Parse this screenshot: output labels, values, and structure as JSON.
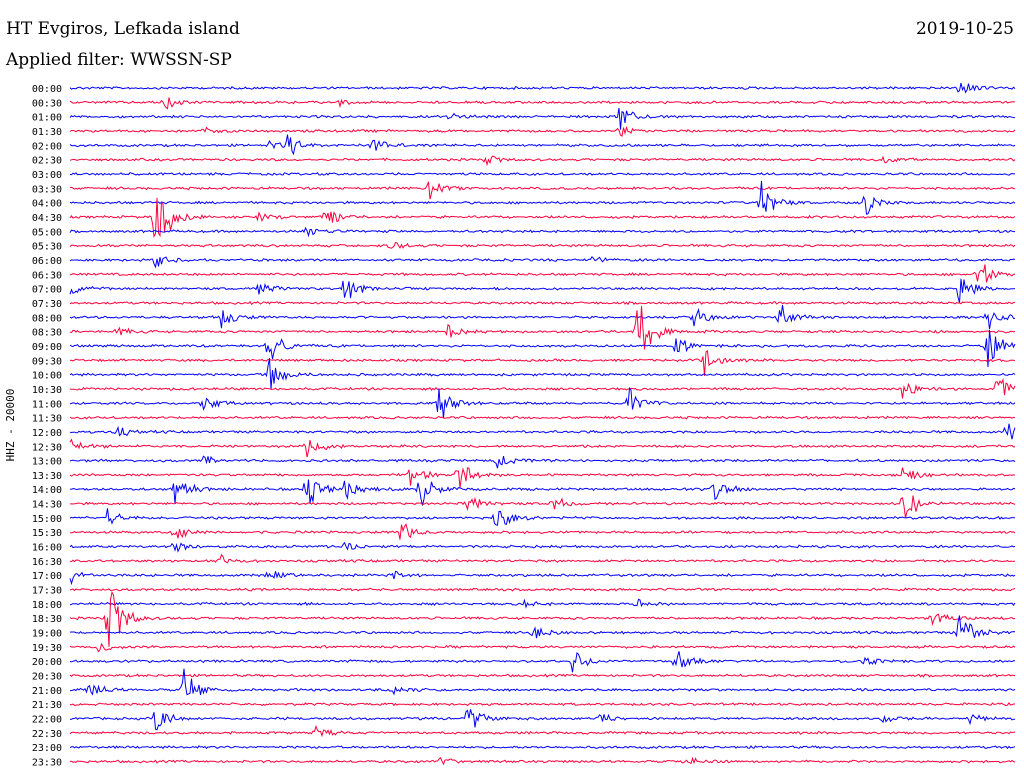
{
  "header": {
    "station": "HT Evgiros, Lefkada island",
    "date": "2019-10-25",
    "filter": "Applied filter: WWSSN-SP"
  },
  "chart_data": {
    "type": "line",
    "title": "HT Evgiros, Lefkada island",
    "ylabel": "HHZ - 20000",
    "grid": false,
    "colors": {
      "even": "#0000ff",
      "odd": "#ff003c"
    },
    "rows": [
      {
        "time": "00:00",
        "events": [
          [
            0.94,
            14
          ]
        ]
      },
      {
        "time": "00:30",
        "events": [
          [
            0.1,
            10
          ],
          [
            0.28,
            6
          ]
        ]
      },
      {
        "time": "01:00",
        "events": [
          [
            0.58,
            16
          ],
          [
            0.4,
            4
          ]
        ]
      },
      {
        "time": "01:30",
        "events": [
          [
            0.58,
            8
          ],
          [
            0.14,
            5
          ]
        ]
      },
      {
        "time": "02:00",
        "events": [
          [
            0.23,
            12
          ],
          [
            0.32,
            10
          ],
          [
            0.21,
            7
          ]
        ]
      },
      {
        "time": "02:30",
        "events": [
          [
            0.44,
            7
          ],
          [
            0.86,
            7
          ]
        ]
      },
      {
        "time": "03:00",
        "events": []
      },
      {
        "time": "03:30",
        "events": [
          [
            0.38,
            12
          ]
        ]
      },
      {
        "time": "04:00",
        "events": [
          [
            0.73,
            26
          ],
          [
            0.84,
            18
          ]
        ]
      },
      {
        "time": "04:30",
        "events": [
          [
            0.09,
            65
          ],
          [
            0.27,
            14
          ],
          [
            0.2,
            10
          ]
        ]
      },
      {
        "time": "05:00",
        "events": [
          [
            0.25,
            8
          ]
        ]
      },
      {
        "time": "05:30",
        "events": [
          [
            0.34,
            6
          ]
        ]
      },
      {
        "time": "06:00",
        "events": [
          [
            0.09,
            10
          ],
          [
            0.55,
            5
          ]
        ]
      },
      {
        "time": "06:30",
        "events": [
          [
            0.96,
            22
          ]
        ]
      },
      {
        "time": "07:00",
        "events": [
          [
            0.29,
            18
          ],
          [
            0.2,
            9
          ],
          [
            0.94,
            18
          ],
          [
            0.0,
            8
          ]
        ]
      },
      {
        "time": "07:30",
        "events": []
      },
      {
        "time": "08:00",
        "events": [
          [
            0.16,
            14
          ],
          [
            0.66,
            18
          ],
          [
            0.75,
            16
          ],
          [
            0.97,
            16
          ]
        ]
      },
      {
        "time": "08:30",
        "events": [
          [
            0.6,
            50
          ],
          [
            0.4,
            8
          ],
          [
            0.05,
            5
          ]
        ]
      },
      {
        "time": "09:00",
        "events": [
          [
            0.21,
            30
          ],
          [
            0.64,
            14
          ],
          [
            0.97,
            26
          ]
        ]
      },
      {
        "time": "09:30",
        "events": [
          [
            0.67,
            22
          ]
        ]
      },
      {
        "time": "10:00",
        "events": [
          [
            0.21,
            22
          ]
        ]
      },
      {
        "time": "10:30",
        "events": [
          [
            0.88,
            16
          ],
          [
            0.98,
            18
          ]
        ]
      },
      {
        "time": "11:00",
        "events": [
          [
            0.14,
            12
          ],
          [
            0.39,
            22
          ],
          [
            0.59,
            20
          ]
        ]
      },
      {
        "time": "11:30",
        "events": []
      },
      {
        "time": "12:00",
        "events": [
          [
            0.99,
            20
          ],
          [
            0.05,
            6
          ]
        ]
      },
      {
        "time": "12:30",
        "events": [
          [
            0.25,
            18
          ],
          [
            0.0,
            10
          ]
        ]
      },
      {
        "time": "13:00",
        "events": [
          [
            0.45,
            12
          ],
          [
            0.14,
            6
          ]
        ]
      },
      {
        "time": "13:30",
        "events": [
          [
            0.36,
            16
          ],
          [
            0.41,
            18
          ],
          [
            0.88,
            14
          ]
        ]
      },
      {
        "time": "14:00",
        "events": [
          [
            0.11,
            22
          ],
          [
            0.25,
            30
          ],
          [
            0.29,
            18
          ],
          [
            0.37,
            24
          ],
          [
            0.68,
            20
          ]
        ]
      },
      {
        "time": "14:30",
        "events": [
          [
            0.42,
            12
          ],
          [
            0.51,
            10
          ],
          [
            0.88,
            30
          ]
        ]
      },
      {
        "time": "15:00",
        "events": [
          [
            0.04,
            12
          ],
          [
            0.45,
            20
          ]
        ]
      },
      {
        "time": "15:30",
        "events": [
          [
            0.35,
            16
          ],
          [
            0.11,
            12
          ]
        ]
      },
      {
        "time": "16:00",
        "events": [
          [
            0.29,
            6
          ],
          [
            0.11,
            8
          ]
        ]
      },
      {
        "time": "16:30",
        "events": [
          [
            0.16,
            6
          ]
        ]
      },
      {
        "time": "17:00",
        "events": [
          [
            0.21,
            12
          ],
          [
            0.0,
            10
          ],
          [
            0.34,
            5
          ]
        ]
      },
      {
        "time": "17:30",
        "events": []
      },
      {
        "time": "18:00",
        "events": [
          [
            0.6,
            6
          ],
          [
            0.48,
            4
          ]
        ]
      },
      {
        "time": "18:30",
        "events": [
          [
            0.04,
            60
          ],
          [
            0.91,
            10
          ]
        ]
      },
      {
        "time": "19:00",
        "events": [
          [
            0.49,
            10
          ],
          [
            0.94,
            28
          ]
        ]
      },
      {
        "time": "19:30",
        "events": [
          [
            0.03,
            8
          ]
        ]
      },
      {
        "time": "20:00",
        "events": [
          [
            0.53,
            16
          ],
          [
            0.64,
            20
          ],
          [
            0.84,
            6
          ]
        ]
      },
      {
        "time": "20:30",
        "events": []
      },
      {
        "time": "21:00",
        "events": [
          [
            0.02,
            12
          ],
          [
            0.12,
            24
          ],
          [
            0.34,
            6
          ]
        ]
      },
      {
        "time": "21:30",
        "events": []
      },
      {
        "time": "22:00",
        "events": [
          [
            0.09,
            18
          ],
          [
            0.42,
            20
          ],
          [
            0.56,
            6
          ],
          [
            0.86,
            6
          ],
          [
            0.95,
            6
          ]
        ]
      },
      {
        "time": "22:30",
        "events": [
          [
            0.26,
            6
          ]
        ]
      },
      {
        "time": "23:00",
        "events": []
      },
      {
        "time": "23:30",
        "events": [
          [
            0.39,
            6
          ],
          [
            0.65,
            6
          ]
        ]
      }
    ]
  }
}
